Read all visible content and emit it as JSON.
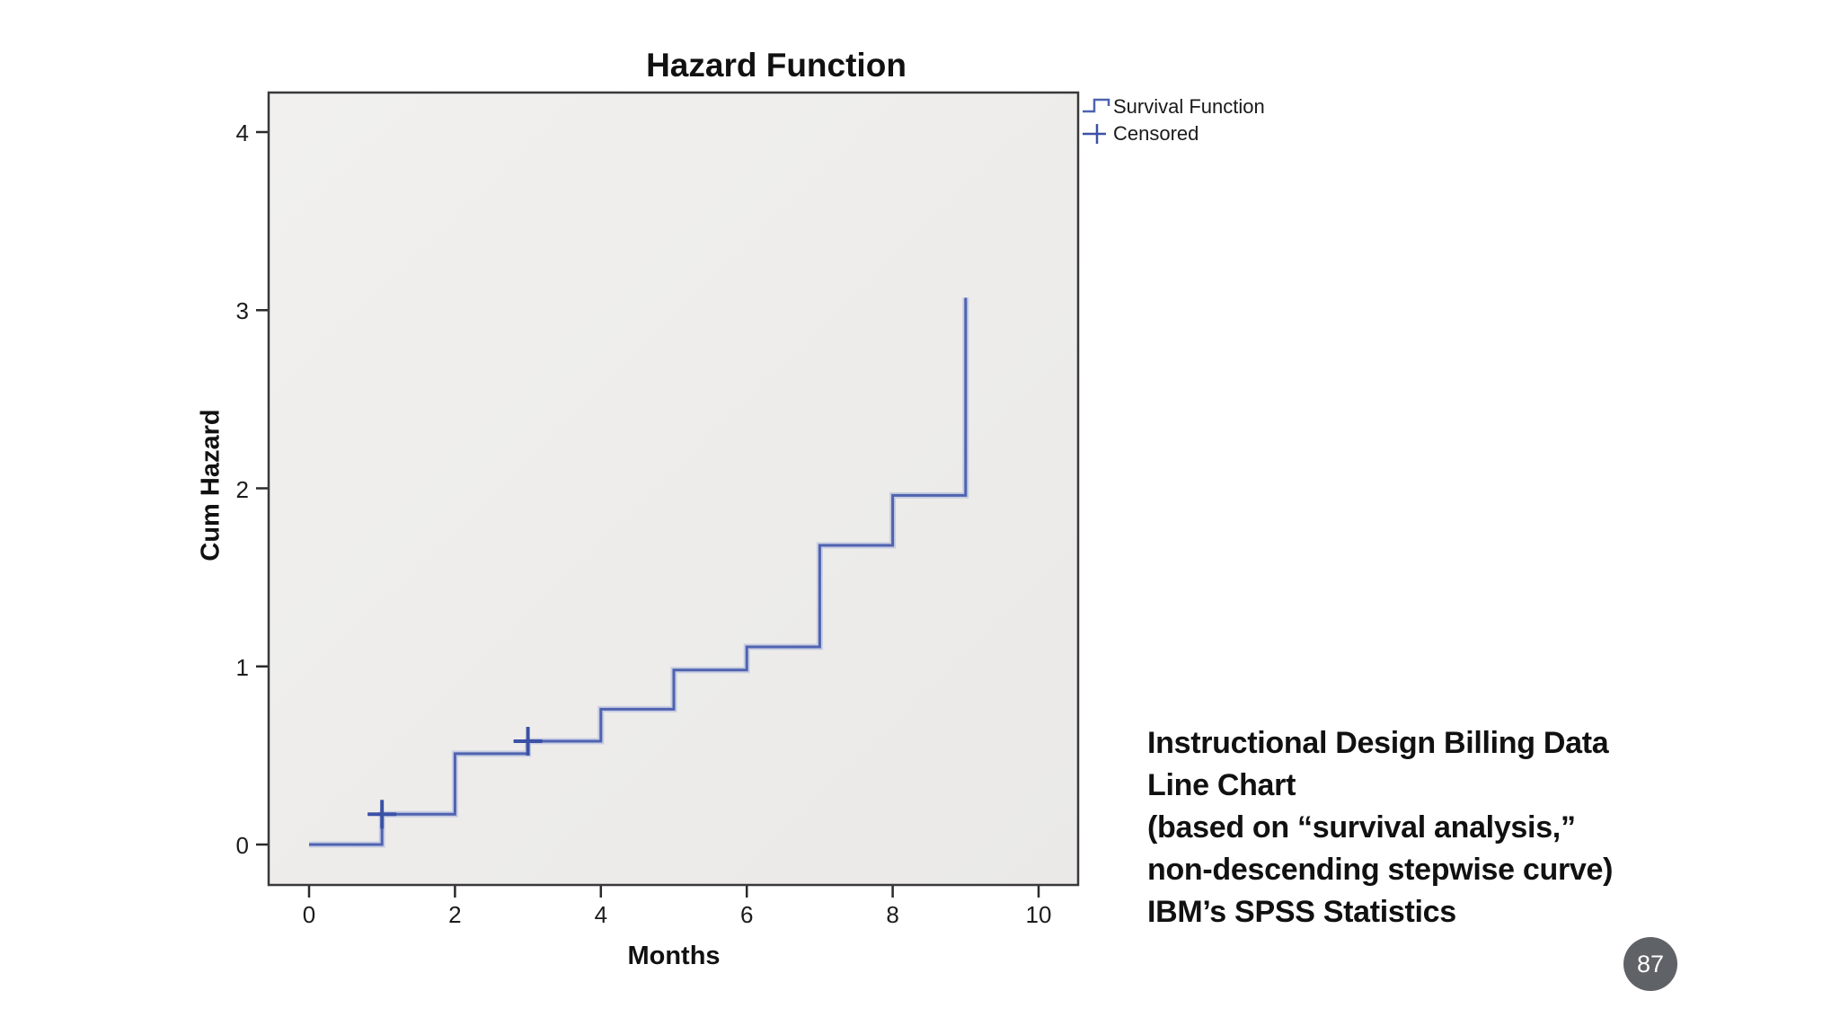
{
  "slide": {
    "page_number": "87",
    "background_color": "#ffffff"
  },
  "chart_data": {
    "type": "line",
    "subtype": "step-post",
    "title": "Hazard Function",
    "xlabel": "Months",
    "ylabel": "Cum Hazard",
    "xlim": [
      0,
      10
    ],
    "ylim": [
      0,
      4
    ],
    "x_ticks": [
      0,
      2,
      4,
      6,
      8,
      10
    ],
    "y_ticks": [
      0,
      1,
      2,
      3,
      4
    ],
    "grid": false,
    "legend_position": "outside-top-right",
    "plot_bg_color": "#efeeec",
    "frame_color": "#39383a",
    "series": [
      {
        "name": "Survival Function",
        "color": "#4f63b0",
        "halo_color": "#aab4da",
        "points": [
          [
            0,
            0
          ],
          [
            1,
            0.17
          ],
          [
            2,
            0.51
          ],
          [
            3,
            0.58
          ],
          [
            4,
            0.76
          ],
          [
            5,
            0.98
          ],
          [
            6,
            1.11
          ],
          [
            7,
            1.68
          ],
          [
            8,
            1.96
          ],
          [
            9,
            3.07
          ]
        ]
      }
    ],
    "censored": {
      "name": "Censored",
      "marker": "plus",
      "color": "#3b51a5",
      "points": [
        [
          1,
          0.17
        ],
        [
          3,
          0.58
        ]
      ]
    }
  },
  "legend": {
    "items": [
      {
        "label": "Survival Function",
        "symbol": "step-line"
      },
      {
        "label": "Censored",
        "symbol": "plus"
      }
    ]
  },
  "caption": {
    "lines": [
      "Instructional Design Billing Data",
      "Line Chart",
      "(based on “survival analysis,”",
      "non-descending stepwise curve)",
      "IBM’s SPSS Statistics"
    ]
  }
}
